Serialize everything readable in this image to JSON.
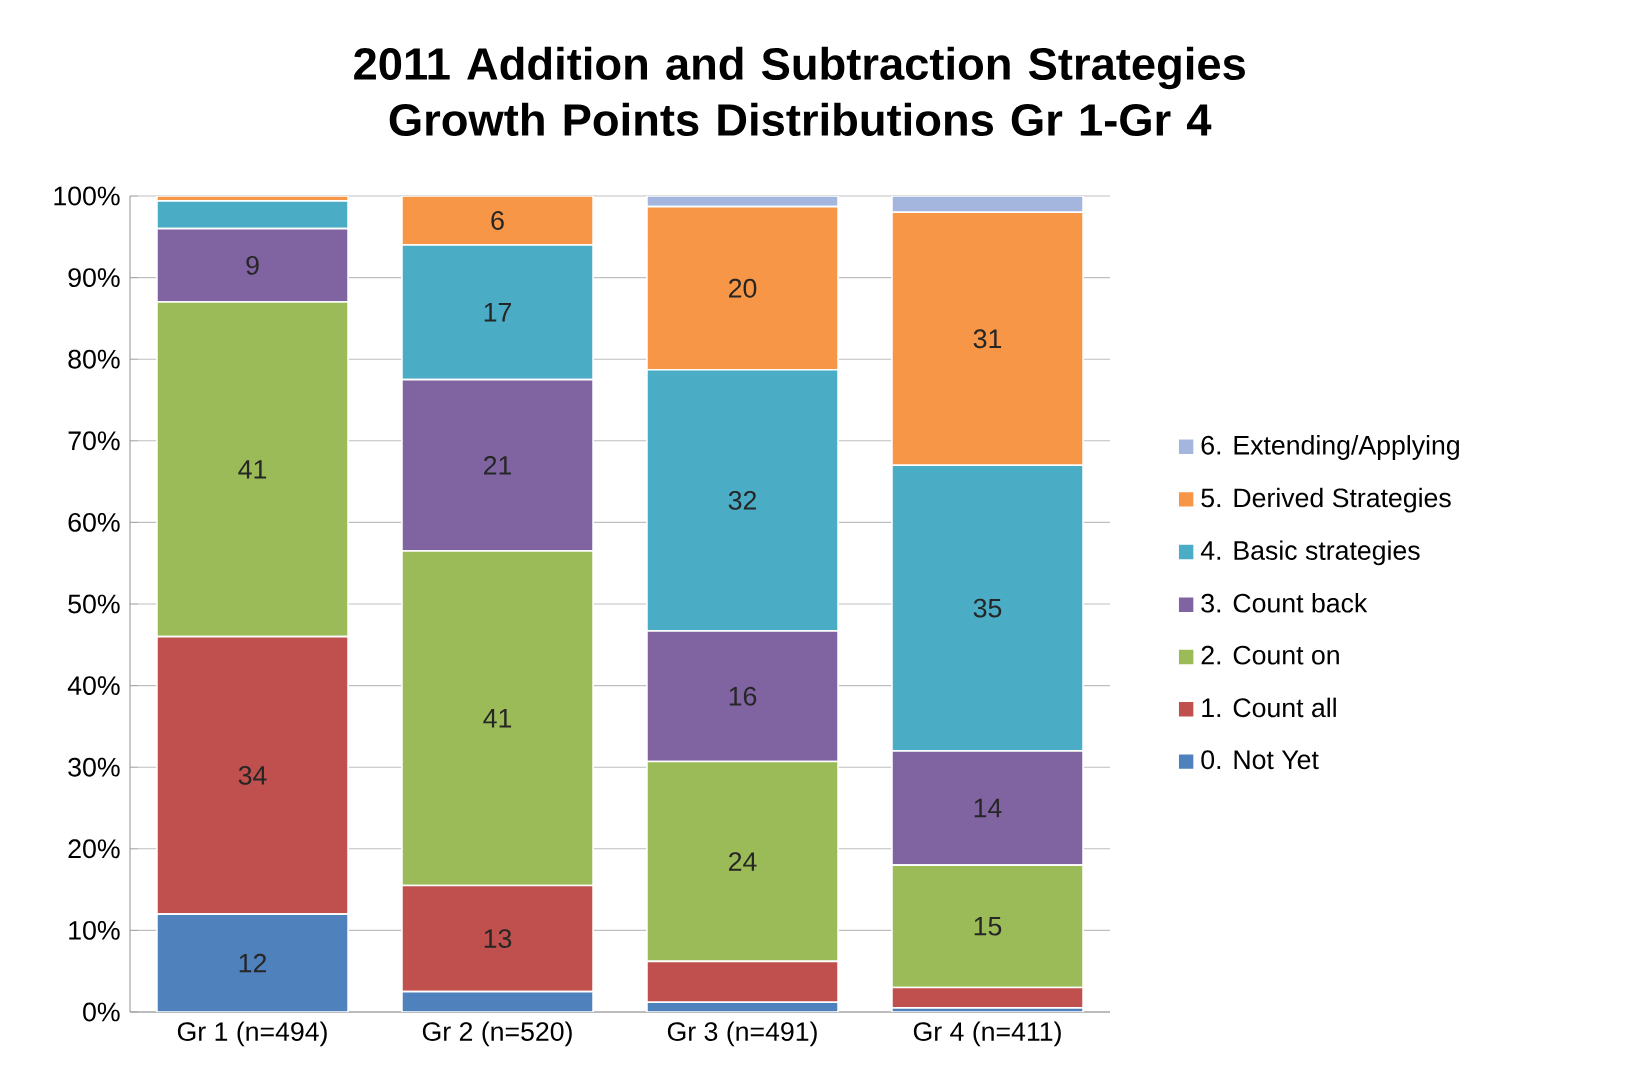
{
  "chart_data": {
    "type": "bar",
    "stacked": true,
    "title": "2011 Addition and Subtraction Strategies Growth Points Distributions Gr 1-Gr 4",
    "categories": [
      "Gr 1 (n=494)",
      "Gr 2 (n=520)",
      "Gr 3 (n=491)",
      "Gr 4 (n=411)"
    ],
    "ylim": [
      0,
      100
    ],
    "yticks": [
      {
        "value": 0,
        "label": "0%"
      },
      {
        "value": 10,
        "label": "10%"
      },
      {
        "value": 20,
        "label": "20%"
      },
      {
        "value": 30,
        "label": "30%"
      },
      {
        "value": 40,
        "label": "40%"
      },
      {
        "value": 50,
        "label": "50%"
      },
      {
        "value": 60,
        "label": "60%"
      },
      {
        "value": 70,
        "label": "70%"
      },
      {
        "value": 80,
        "label": "80%"
      },
      {
        "value": 90,
        "label": "90%"
      },
      {
        "value": 100,
        "label": "100%"
      }
    ],
    "grid": "y",
    "legend": "right",
    "series": [
      {
        "name": "0. Not Yet",
        "color": "#4f81bd",
        "values": [
          12,
          2.5,
          1.2,
          0.5
        ],
        "value_labels": [
          "12",
          null,
          null,
          null
        ]
      },
      {
        "name": "1. Count all",
        "color": "#c0504d",
        "values": [
          34,
          13,
          5,
          2.5
        ],
        "value_labels": [
          "34",
          "13",
          null,
          null
        ]
      },
      {
        "name": "2. Count on",
        "color": "#9bbb59",
        "values": [
          41,
          41,
          24.5,
          15
        ],
        "value_labels": [
          "41",
          "41",
          "24",
          "15"
        ]
      },
      {
        "name": "3. Count back",
        "color": "#8064a2",
        "values": [
          9,
          21,
          16,
          14
        ],
        "value_labels": [
          "9",
          "21",
          "16",
          "14"
        ]
      },
      {
        "name": "4. Basic strategies",
        "color": "#4bacc6",
        "values": [
          3.4,
          16.5,
          32,
          35
        ],
        "value_labels": [
          null,
          "17",
          "32",
          "35"
        ]
      },
      {
        "name": "5. Derived Strategies",
        "color": "#f79646",
        "values": [
          0.6,
          6,
          20,
          31
        ],
        "value_labels": [
          null,
          "6",
          "20",
          "31"
        ]
      },
      {
        "name": "6. Extending/Applying",
        "color": "#a5b6de",
        "values": [
          0,
          0,
          1.3,
          2
        ],
        "value_labels": [
          null,
          null,
          null,
          null
        ]
      }
    ]
  }
}
